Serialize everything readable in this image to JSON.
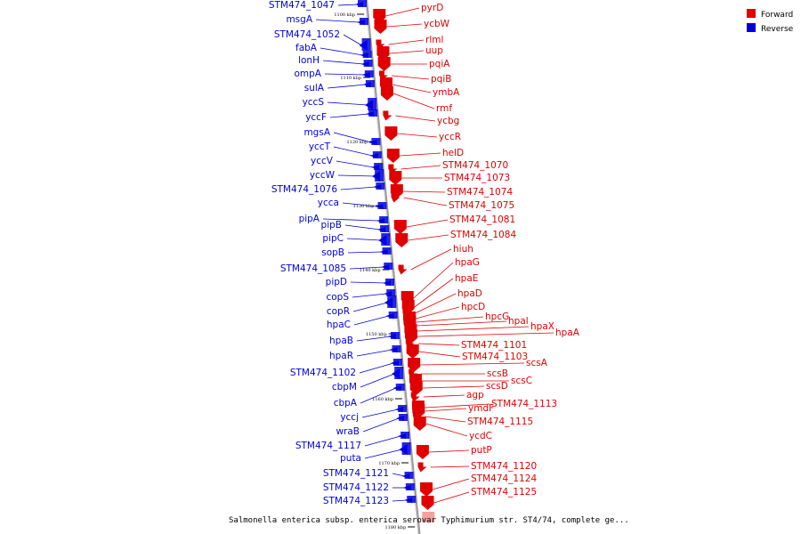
{
  "colors": {
    "forward": "#e00000",
    "reverse": "#0000e0",
    "axis": "#888888"
  },
  "legend": [
    {
      "label": "Forward",
      "color": "#e00000"
    },
    {
      "label": "Reverse",
      "color": "#0000e0"
    }
  ],
  "caption": "Salmonella enterica subsp. enterica serovar Typhimurium str. ST4/74, complete ge...",
  "ticks": [
    "1100 kbp",
    "1110 kbp",
    "1120 kbp",
    "1130 kbp",
    "1140 kbp",
    "1150 kbp",
    "1160 kbp",
    "1170 kbp",
    "1180 kbp"
  ],
  "reverse_genes": [
    "STM474_1047",
    "msgA",
    "STM474_1052",
    "fabA",
    "lonH",
    "ompA",
    "sulA",
    "yccS",
    "yccF",
    "mgsA",
    "yccT",
    "yccV",
    "yccW",
    "STM474_1076",
    "ycca",
    "pipA",
    "pipB",
    "pipC",
    "sopB",
    "STM474_1085",
    "pipD",
    "copS",
    "copR",
    "hpaC",
    "hpaB",
    "hpaR",
    "STM474_1102",
    "cbpM",
    "cbpA",
    "yccj",
    "wraB",
    "STM474_1117",
    "puta",
    "STM474_1121",
    "STM474_1122",
    "STM474_1123"
  ],
  "forward_genes": [
    "pyrD",
    "ycbW",
    "rlml",
    "uup",
    "pqiA",
    "pqiB",
    "ymbA",
    "rmf",
    "ycbg",
    "yccR",
    "helD",
    "STM474_1070",
    "STM474_1073",
    "STM474_1074",
    "STM474_1075",
    "STM474_1081",
    "STM474_1084",
    "hiuh",
    "hpaG",
    "hpaE",
    "hpaD",
    "hpcD",
    "hpcG",
    "hpal",
    "hpaX",
    "hpaA",
    "STM474_1101",
    "STM474_1103",
    "scsA",
    "scsB",
    "scsC",
    "scsD",
    "agp",
    "STM474_1113",
    "ymdF",
    "STM474_1115",
    "ycdC",
    "putP",
    "STM474_1120",
    "STM474_1124",
    "STM474_1125"
  ]
}
